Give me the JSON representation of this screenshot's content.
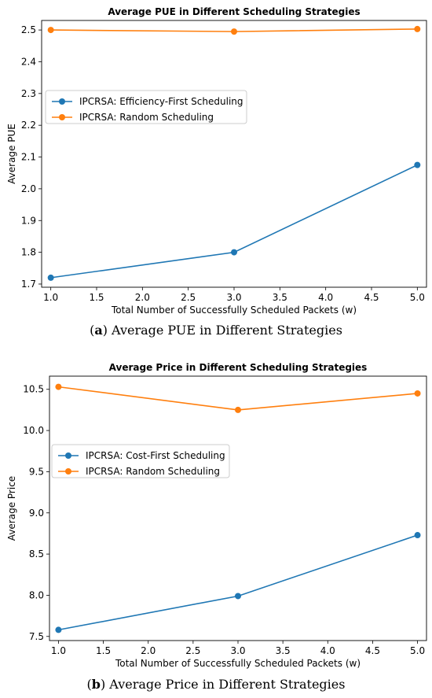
{
  "chart_data": [
    {
      "type": "line",
      "title": "Average PUE in Different Scheduling Strategies",
      "xlabel": "Total Number of Successfully Scheduled Packets (w)",
      "ylabel": "Average PUE",
      "xlim": [
        0.9,
        5.1
      ],
      "ylim": [
        1.69,
        2.53
      ],
      "xticks": [
        "1.0",
        "1.5",
        "2.0",
        "2.5",
        "3.0",
        "3.5",
        "4.0",
        "4.5",
        "5.0"
      ],
      "yticks": [
        "1.7",
        "1.8",
        "1.9",
        "2.0",
        "2.1",
        "2.2",
        "2.3",
        "2.4",
        "2.5"
      ],
      "x": [
        1.0,
        3.0,
        5.0
      ],
      "series": [
        {
          "name": "IPCRSA: Efficiency-First Scheduling",
          "color": "#1f77b4",
          "values": [
            1.72,
            1.8,
            2.075
          ]
        },
        {
          "name": "IPCRSA: Random Scheduling",
          "color": "#ff7f0e",
          "values": [
            2.5,
            2.495,
            2.503
          ]
        }
      ],
      "legend": "center-left",
      "grid": false,
      "caption_label": "a",
      "caption_text": "Average PUE in Different Strategies"
    },
    {
      "type": "line",
      "title": "Average Price in Different Scheduling Strategies",
      "xlabel": "Total Number of Successfully Scheduled Packets (w)",
      "ylabel": "Average Price",
      "xlim": [
        0.9,
        5.1
      ],
      "ylim": [
        7.45,
        10.66
      ],
      "xticks": [
        "1.0",
        "1.5",
        "2.0",
        "2.5",
        "3.0",
        "3.5",
        "4.0",
        "4.5",
        "5.0"
      ],
      "yticks": [
        "7.5",
        "8.0",
        "8.5",
        "9.0",
        "9.5",
        "10.0",
        "10.5"
      ],
      "x": [
        1.0,
        3.0,
        5.0
      ],
      "series": [
        {
          "name": "IPCRSA: Cost-First Scheduling",
          "color": "#1f77b4",
          "values": [
            7.58,
            7.99,
            8.73
          ]
        },
        {
          "name": "IPCRSA: Random Scheduling",
          "color": "#ff7f0e",
          "values": [
            10.53,
            10.25,
            10.45
          ]
        }
      ],
      "legend": "center-left",
      "grid": false,
      "caption_label": "b",
      "caption_text": "Average Price in Different Strategies"
    }
  ]
}
